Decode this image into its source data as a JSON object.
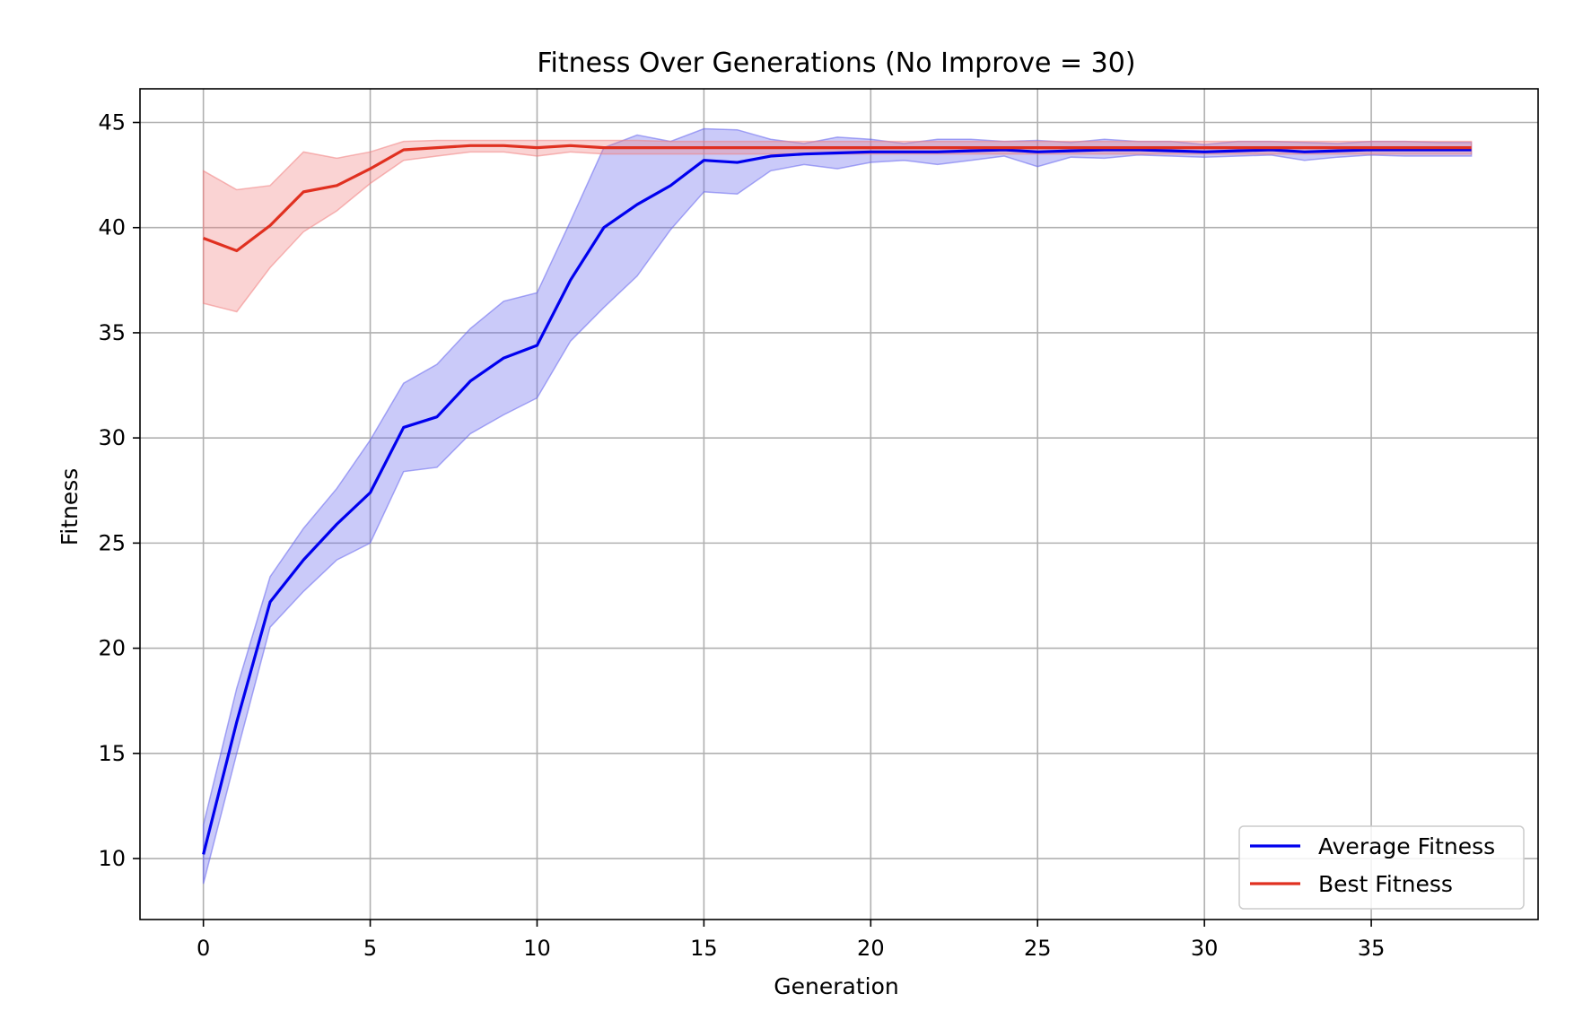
{
  "chart_data": {
    "type": "line",
    "title": "Fitness Over Generations (No Improve = 30)",
    "xlabel": "Generation",
    "ylabel": "Fitness",
    "xlim": [
      -1.9,
      40.0
    ],
    "ylim": [
      7.1,
      46.6
    ],
    "grid": true,
    "legend_position": "lower right",
    "x_ticks": [
      0,
      5,
      10,
      15,
      20,
      25,
      30,
      35
    ],
    "y_ticks": [
      10,
      15,
      20,
      25,
      30,
      35,
      40,
      45
    ],
    "x": [
      0,
      1,
      2,
      3,
      4,
      5,
      6,
      7,
      8,
      9,
      10,
      11,
      12,
      13,
      14,
      15,
      16,
      17,
      18,
      19,
      20,
      21,
      22,
      23,
      24,
      25,
      26,
      27,
      28,
      29,
      30,
      31,
      32,
      33,
      34,
      35,
      36,
      37,
      38
    ],
    "series": [
      {
        "name": "Average Fitness",
        "color": "#0000ee",
        "band_color": "#6666ee",
        "values": [
          10.2,
          16.5,
          22.2,
          24.2,
          25.9,
          27.4,
          30.5,
          31.0,
          32.7,
          33.8,
          34.4,
          37.5,
          40.0,
          41.1,
          42.0,
          43.2,
          43.1,
          43.4,
          43.5,
          43.55,
          43.6,
          43.6,
          43.6,
          43.65,
          43.7,
          43.6,
          43.65,
          43.7,
          43.7,
          43.65,
          43.6,
          43.65,
          43.7,
          43.6,
          43.65,
          43.7,
          43.7,
          43.7,
          43.7
        ],
        "lower": [
          8.8,
          15.0,
          21.0,
          22.7,
          24.2,
          25.0,
          28.4,
          28.6,
          30.2,
          31.1,
          31.9,
          34.6,
          36.2,
          37.7,
          39.9,
          41.7,
          41.6,
          42.7,
          43.0,
          42.8,
          43.1,
          43.2,
          43.0,
          43.2,
          43.4,
          42.9,
          43.35,
          43.3,
          43.45,
          43.4,
          43.35,
          43.4,
          43.45,
          43.2,
          43.35,
          43.45,
          43.4,
          43.4,
          43.4
        ],
        "upper": [
          11.6,
          18.1,
          23.4,
          25.7,
          27.6,
          29.9,
          32.6,
          33.5,
          35.2,
          36.5,
          36.9,
          40.3,
          43.8,
          44.4,
          44.1,
          44.7,
          44.65,
          44.2,
          44.0,
          44.3,
          44.2,
          44.0,
          44.2,
          44.2,
          44.1,
          44.15,
          44.05,
          44.2,
          44.1,
          44.1,
          43.95,
          44.1,
          44.1,
          44.05,
          44.0,
          44.1,
          44.1,
          44.05,
          44.05
        ]
      },
      {
        "name": "Best Fitness",
        "color": "#e03020",
        "band_color": "#f08080",
        "values": [
          39.5,
          38.9,
          40.1,
          41.7,
          42.0,
          42.8,
          43.7,
          43.8,
          43.9,
          43.9,
          43.8,
          43.9,
          43.8,
          43.8,
          43.8,
          43.8,
          43.8,
          43.8,
          43.8,
          43.8,
          43.8,
          43.8,
          43.8,
          43.8,
          43.8,
          43.8,
          43.8,
          43.8,
          43.8,
          43.8,
          43.8,
          43.8,
          43.8,
          43.8,
          43.8,
          43.8,
          43.8,
          43.8,
          43.8
        ],
        "lower": [
          36.4,
          36.0,
          38.1,
          39.8,
          40.8,
          42.1,
          43.2,
          43.4,
          43.6,
          43.6,
          43.4,
          43.6,
          43.5,
          43.5,
          43.5,
          43.5,
          43.5,
          43.5,
          43.5,
          43.5,
          43.5,
          43.5,
          43.5,
          43.5,
          43.5,
          43.5,
          43.5,
          43.5,
          43.5,
          43.5,
          43.5,
          43.5,
          43.5,
          43.5,
          43.5,
          43.5,
          43.5,
          43.5,
          43.5
        ],
        "upper": [
          42.7,
          41.8,
          42.0,
          43.6,
          43.3,
          43.6,
          44.1,
          44.15,
          44.15,
          44.15,
          44.15,
          44.15,
          44.15,
          44.15,
          44.1,
          44.1,
          44.1,
          44.1,
          44.1,
          44.1,
          44.1,
          44.1,
          44.1,
          44.1,
          44.1,
          44.1,
          44.1,
          44.1,
          44.1,
          44.1,
          44.1,
          44.1,
          44.1,
          44.1,
          44.1,
          44.1,
          44.1,
          44.1,
          44.1
        ]
      }
    ]
  }
}
